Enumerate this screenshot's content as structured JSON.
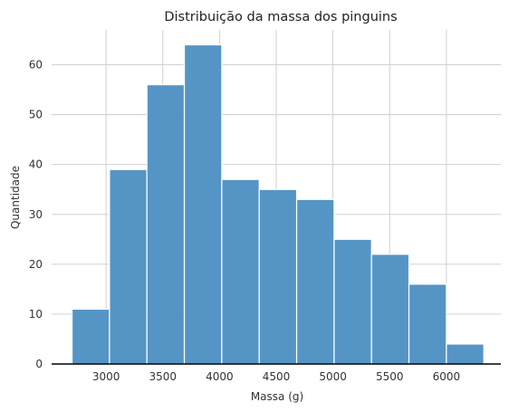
{
  "chart_data": {
    "type": "histogram",
    "title": "Distribuição da massa dos pinguins",
    "xlabel": "Massa (g)",
    "ylabel": "Quantidade",
    "xlim": [
      2520,
      6480
    ],
    "ylim": [
      0,
      67
    ],
    "xticks": [
      3000,
      3500,
      4000,
      4500,
      5000,
      5500,
      6000
    ],
    "yticks": [
      0,
      10,
      20,
      30,
      40,
      50,
      60
    ],
    "bins": [
      {
        "x0": 2700,
        "x1": 3030,
        "count": 11
      },
      {
        "x0": 3030,
        "x1": 3360,
        "count": 39
      },
      {
        "x0": 3360,
        "x1": 3690,
        "count": 56
      },
      {
        "x0": 3690,
        "x1": 4020,
        "count": 64
      },
      {
        "x0": 4020,
        "x1": 4350,
        "count": 37
      },
      {
        "x0": 4350,
        "x1": 4680,
        "count": 35
      },
      {
        "x0": 4680,
        "x1": 5010,
        "count": 33
      },
      {
        "x0": 5010,
        "x1": 5340,
        "count": 25
      },
      {
        "x0": 5340,
        "x1": 5670,
        "count": 22
      },
      {
        "x0": 5670,
        "x1": 6000,
        "count": 16
      },
      {
        "x0": 6000,
        "x1": 6330,
        "count": 4
      }
    ],
    "grid": true,
    "bar_color": "#4c8fc3",
    "bar_edge_color": "#ffffff",
    "grid_color": "#cccccc"
  }
}
